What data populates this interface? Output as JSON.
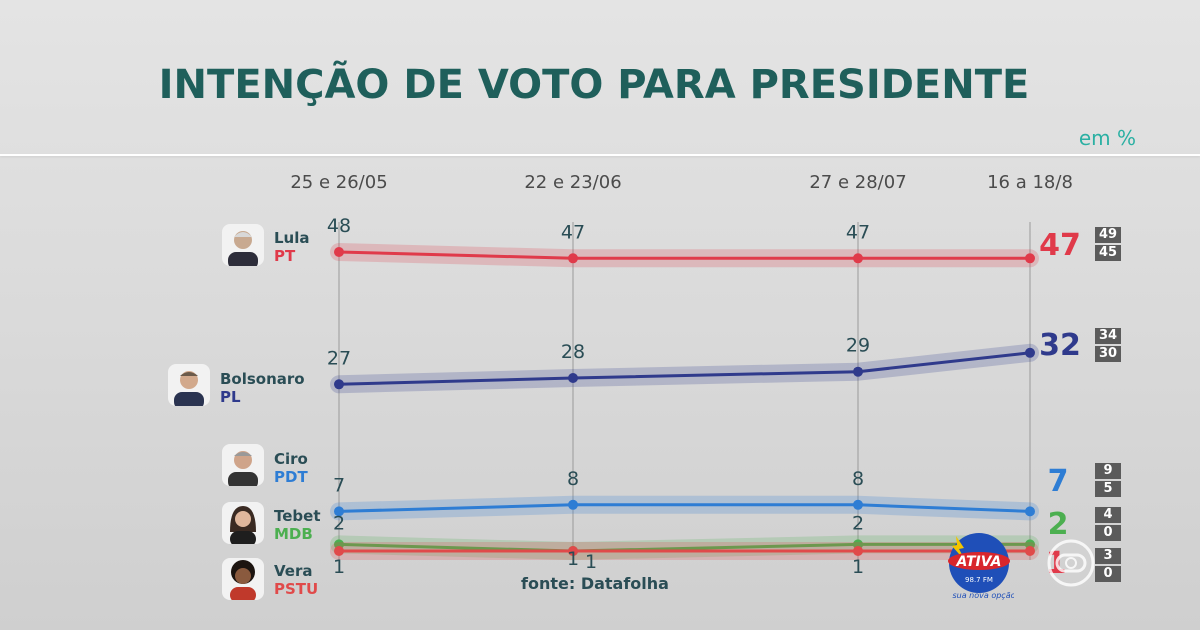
{
  "header": {
    "title": "INTENÇÃO DE VOTO PARA PRESIDENTE",
    "unit": "em %"
  },
  "source": "fonte: Datafolha",
  "chart_data": {
    "type": "line",
    "title": "INTENÇÃO DE VOTO PARA PRESIDENTE",
    "x": [
      "25 e 26/05",
      "22 e 23/06",
      "27 e 28/07",
      "16 a 18/8"
    ],
    "series": [
      {
        "name": "Lula",
        "party": "PT",
        "color": "#e03a4a",
        "values": [
          48,
          47,
          47,
          47
        ],
        "range": [
          "49",
          "45"
        ]
      },
      {
        "name": "Bolsonaro",
        "party": "PL",
        "color": "#2f3a8c",
        "values": [
          27,
          28,
          29,
          32
        ],
        "range": [
          "34",
          "30"
        ]
      },
      {
        "name": "Ciro",
        "party": "PDT",
        "color": "#2e7dd4",
        "values": [
          7,
          8,
          8,
          7
        ],
        "range": [
          "9",
          "5"
        ]
      },
      {
        "name": "Tebet",
        "party": "MDB",
        "color": "#4caf50",
        "values": [
          2,
          1,
          2,
          2
        ],
        "range": [
          "4",
          "0"
        ]
      },
      {
        "name": "Vera",
        "party": "PSTU",
        "color": "#e04a4a",
        "values": [
          1,
          1,
          1,
          1
        ],
        "range": [
          "3",
          "0"
        ]
      }
    ],
    "point_labels": {
      "Lula": [
        "48",
        "47",
        "47"
      ],
      "Bolsonaro": [
        "27",
        "28",
        "29"
      ],
      "Ciro": [
        "7",
        "8",
        "8"
      ],
      "Tebet": [
        "2",
        "",
        "2"
      ],
      "Vera": [
        "1",
        "1",
        "1"
      ]
    },
    "final_labels": [
      "47",
      "32",
      "7",
      "2",
      "1"
    ]
  },
  "logos": {
    "ativa_text": "ATIVA",
    "ativa_freq": "98.7 FM",
    "ativa_slogan": "sua nova opção"
  }
}
